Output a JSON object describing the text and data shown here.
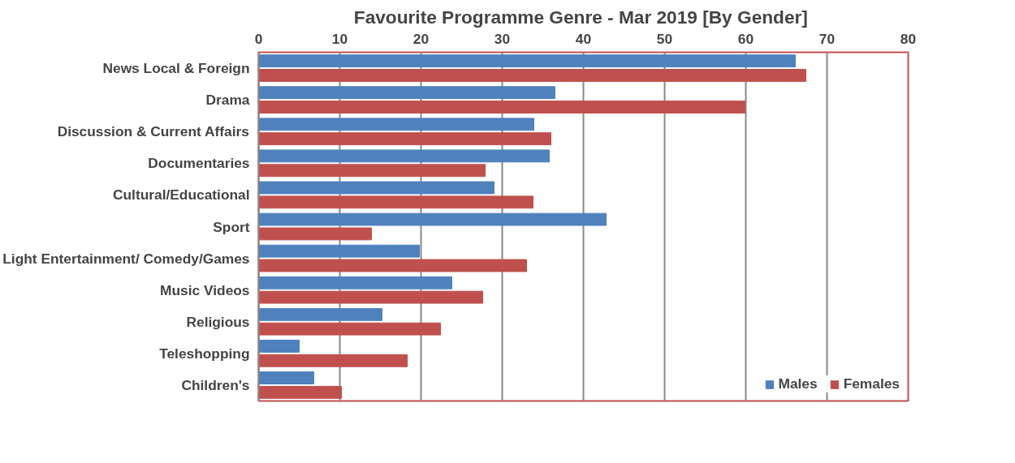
{
  "chart_data": {
    "type": "bar",
    "orientation": "horizontal",
    "title": "Favourite Programme Genre  - Mar 2019 [By Gender]",
    "categories": [
      "News Local & Foreign",
      "Drama",
      "Discussion & Current Affairs",
      "Documentaries",
      "Cultural/Educational",
      "Sport",
      "Light Entertainment/ Comedy/Games",
      "Music Videos",
      "Religious",
      "Teleshopping",
      "Children's"
    ],
    "series": [
      {
        "name": "Males",
        "color": "#4f81bd",
        "values": [
          66.1,
          36.5,
          33.9,
          35.8,
          29.0,
          42.8,
          19.8,
          23.8,
          15.2,
          5.0,
          6.8
        ]
      },
      {
        "name": "Females",
        "color": "#c0504d",
        "values": [
          67.4,
          59.9,
          36.0,
          27.9,
          33.8,
          13.9,
          33.0,
          27.6,
          22.4,
          18.3,
          10.2
        ]
      }
    ],
    "xlim": [
      0,
      80
    ],
    "xticks": [
      0,
      10,
      20,
      30,
      40,
      50,
      60,
      70,
      80
    ],
    "grid": "x",
    "legend": "bottom right"
  }
}
